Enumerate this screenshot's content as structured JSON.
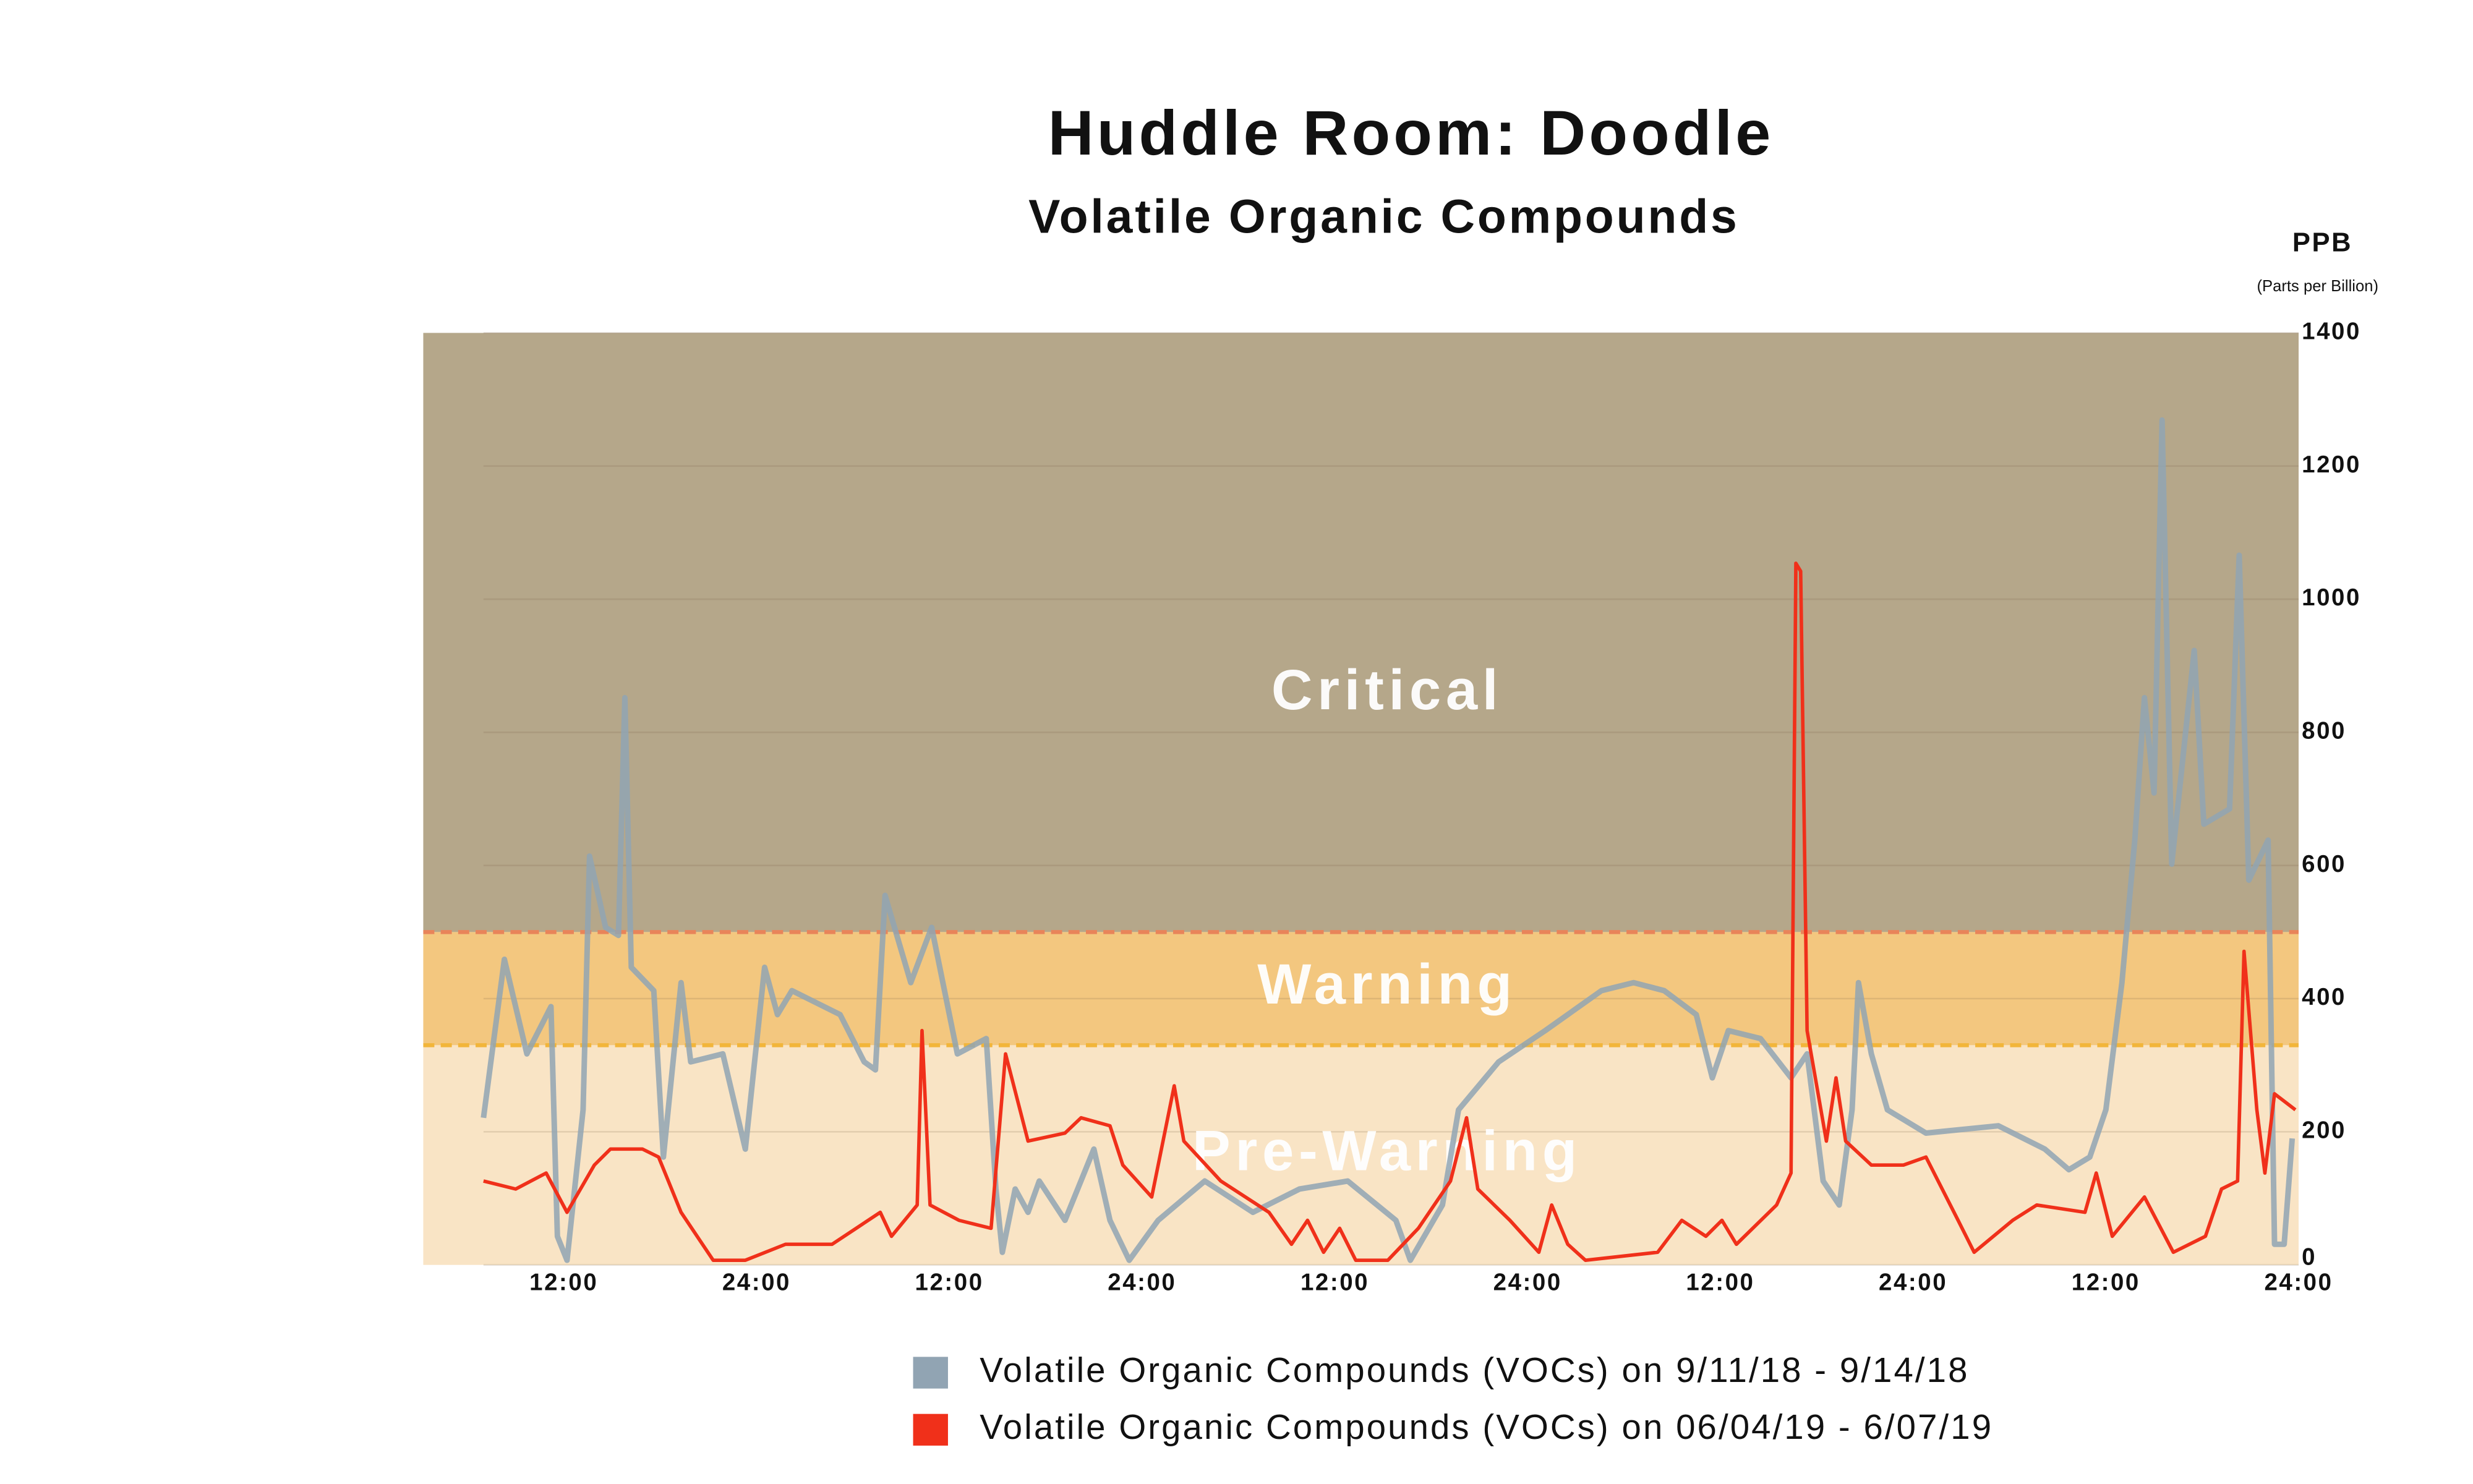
{
  "chart_data": {
    "type": "line",
    "title": "Huddle Room: Doodle",
    "subtitle": "Volatile Organic Compounds",
    "y_axis_label": "PPB",
    "y_axis_sublabel": "(Parts per Billion)",
    "xlim": [
      7,
      120
    ],
    "ylim": [
      0,
      1400
    ],
    "yticks": [
      0,
      200,
      400,
      600,
      800,
      1000,
      1200,
      1400
    ],
    "xticks": [
      {
        "value": 12,
        "label": "12:00"
      },
      {
        "value": 24,
        "label": "24:00"
      },
      {
        "value": 36,
        "label": "12:00"
      },
      {
        "value": 48,
        "label": "24:00"
      },
      {
        "value": 60,
        "label": "12:00"
      },
      {
        "value": 72,
        "label": "24:00"
      },
      {
        "value": 84,
        "label": "12:00"
      },
      {
        "value": 96,
        "label": "24:00"
      },
      {
        "value": 108,
        "label": "12:00"
      },
      {
        "value": 120,
        "label": "24:00"
      }
    ],
    "grid": true,
    "bands": [
      {
        "label": "Critical",
        "from": 500,
        "to": 1400,
        "color": "#b5a78a",
        "border_color": "#e8845a"
      },
      {
        "label": "Warning",
        "from": 330,
        "to": 500,
        "color": "#f3c77f",
        "border_color": "#f2b53a"
      },
      {
        "label": "Pre-Warning",
        "from": 0,
        "to": 330,
        "color": "#f9e4c5"
      }
    ],
    "series": [
      {
        "name": "Volatile Organic Compounds (VOCs) on 9/11/18 - 9/14/18",
        "color": "#91a4b3",
        "x": [
          7.0,
          8.3,
          9.7,
          11.2,
          11.6,
          12.2,
          13.2,
          13.6,
          14.6,
          15.4,
          15.8,
          16.2,
          17.6,
          18.2,
          19.3,
          19.9,
          21.9,
          23.3,
          24.5,
          25.3,
          26.2,
          29.2,
          30.7,
          31.4,
          32.0,
          33.6,
          34.9,
          35.7,
          36.5,
          38.3,
          38.9,
          39.3,
          40.1,
          40.9,
          41.6,
          43.2,
          45.0,
          46.0,
          47.2,
          49.0,
          51.9,
          54.9,
          57.8,
          60.8,
          63.8,
          64.7,
          66.7,
          67.7,
          70.2,
          73.1,
          76.6,
          78.6,
          80.5,
          82.5,
          83.5,
          84.5,
          86.5,
          88.4,
          89.4,
          90.4,
          91.4,
          92.2,
          92.6,
          93.4,
          94.4,
          96.8,
          101.3,
          104.2,
          105.7,
          107.0,
          108.0,
          109.0,
          109.8,
          110.4,
          111.0,
          111.5,
          112.1,
          113.5,
          114.1,
          115.7,
          116.3,
          116.9,
          118.1,
          118.5,
          119.1,
          119.6
        ],
        "values": [
          221,
          459,
          317,
          388,
          43,
          7,
          233,
          614,
          507,
          495,
          852,
          447,
          412,
          162,
          424,
          305,
          317,
          174,
          447,
          376,
          412,
          376,
          305,
          293,
          555,
          424,
          507,
          412,
          317,
          340,
          114,
          19,
          114,
          79,
          126,
          67,
          174,
          67,
          7,
          67,
          126,
          79,
          114,
          126,
          67,
          7,
          90,
          233,
          305,
          352,
          412,
          424,
          412,
          376,
          281,
          352,
          340,
          281,
          317,
          126,
          90,
          233,
          424,
          317,
          233,
          198,
          209,
          174,
          143,
          162,
          233,
          424,
          638,
          852,
          709,
          1269,
          602,
          923,
          662,
          685,
          1066,
          578,
          638,
          31,
          31,
          190
        ]
      },
      {
        "name": "Volatile Organic Compounds (VOCs) on 06/04/19 - 6/07/19",
        "color": "#f0301a",
        "x": [
          7.0,
          9.0,
          10.9,
          12.2,
          13.9,
          14.9,
          16.9,
          17.9,
          19.3,
          21.3,
          23.3,
          25.8,
          28.7,
          30.2,
          31.7,
          32.4,
          34.0,
          34.3,
          34.8,
          36.6,
          38.6,
          39.5,
          40.9,
          43.2,
          44.2,
          46.0,
          46.8,
          48.6,
          50.0,
          50.6,
          52.9,
          55.9,
          57.3,
          58.3,
          59.3,
          60.3,
          61.3,
          63.3,
          65.2,
          67.2,
          68.2,
          68.9,
          70.9,
          72.7,
          73.5,
          74.5,
          75.6,
          80.1,
          81.6,
          83.1,
          84.1,
          85.0,
          87.5,
          88.4,
          88.7,
          89.0,
          89.4,
          90.6,
          91.2,
          91.8,
          93.4,
          95.4,
          96.8,
          98.8,
          99.8,
          102.2,
          103.7,
          106.7,
          107.4,
          108.4,
          110.4,
          112.2,
          114.2,
          115.2,
          116.2,
          116.6,
          117.4,
          117.9,
          118.5,
          119.8
        ],
        "values": [
          126,
          114,
          138,
          79,
          150,
          174,
          174,
          162,
          79,
          7,
          7,
          31,
          31,
          55,
          79,
          43,
          90,
          352,
          90,
          67,
          55,
          317,
          186,
          198,
          221,
          209,
          150,
          102,
          269,
          186,
          126,
          79,
          31,
          67,
          19,
          55,
          7,
          7,
          55,
          126,
          221,
          114,
          67,
          19,
          90,
          31,
          7,
          19,
          67,
          43,
          67,
          31,
          90,
          138,
          1054,
          1042,
          352,
          186,
          281,
          186,
          150,
          150,
          162,
          67,
          19,
          67,
          90,
          79,
          138,
          43,
          102,
          19,
          43,
          114,
          126,
          471,
          233,
          138,
          257,
          233
        ]
      }
    ]
  }
}
